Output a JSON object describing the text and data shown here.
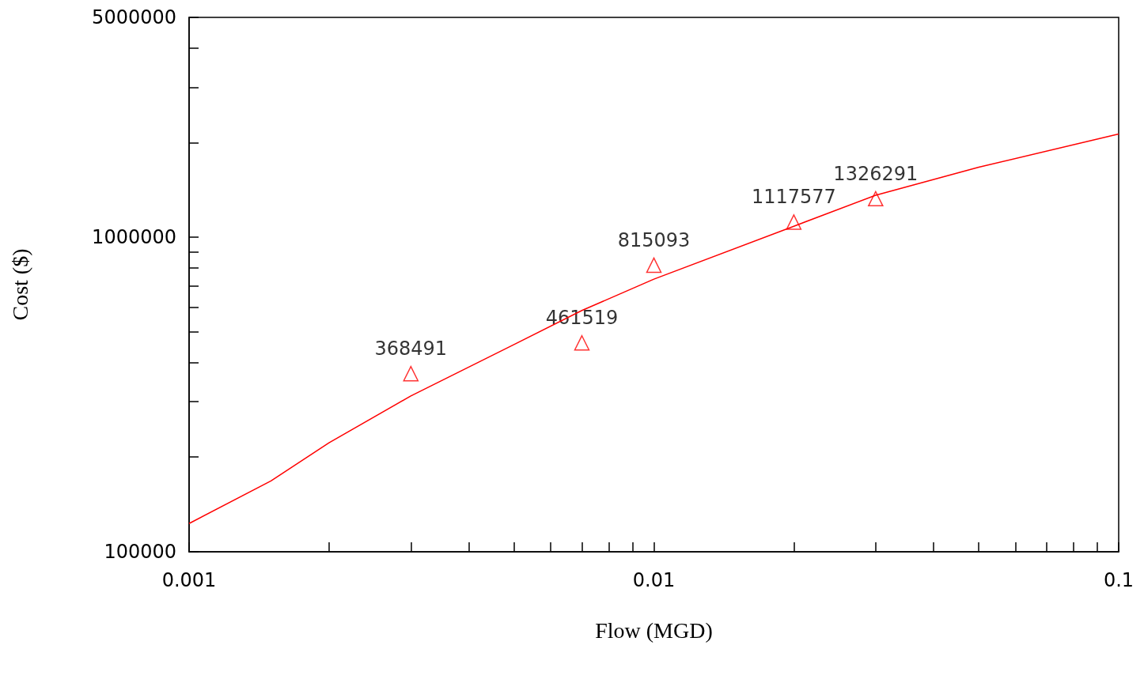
{
  "chart_data": {
    "type": "scatter",
    "xlabel": "Flow (MGD)",
    "ylabel": "Cost ($)",
    "log": "xy",
    "grid": false,
    "xlim": [
      0.001,
      0.1
    ],
    "ylim": [
      100000,
      5000000
    ],
    "xticks": [
      0.001,
      {
        "value": 0.002,
        "label": null
      },
      {
        "value": 0.003,
        "label": null
      },
      {
        "value": 0.004,
        "label": null
      },
      {
        "value": 0.005,
        "label": null
      },
      {
        "value": 0.006,
        "label": null
      },
      {
        "value": 0.007,
        "label": null
      },
      {
        "value": 0.008,
        "label": null
      },
      {
        "value": 0.009,
        "label": null
      },
      0.01,
      {
        "value": 0.02,
        "label": null
      },
      {
        "value": 0.03,
        "label": null
      },
      {
        "value": 0.04,
        "label": null
      },
      {
        "value": 0.05,
        "label": null
      },
      {
        "value": 0.06,
        "label": null
      },
      {
        "value": 0.07,
        "label": null
      },
      {
        "value": 0.08,
        "label": null
      },
      {
        "value": 0.09,
        "label": null
      },
      0.1
    ],
    "yticks": [
      100000,
      {
        "value": 200000,
        "label": null
      },
      {
        "value": 300000,
        "label": null
      },
      {
        "value": 400000,
        "label": null
      },
      {
        "value": 500000,
        "label": null
      },
      {
        "value": 600000,
        "label": null
      },
      {
        "value": 700000,
        "label": null
      },
      {
        "value": 800000,
        "label": null
      },
      {
        "value": 900000,
        "label": null
      },
      1000000,
      {
        "value": 2000000,
        "label": null
      },
      {
        "value": 3000000,
        "label": null
      },
      {
        "value": 4000000,
        "label": null
      },
      5000000
    ],
    "series": [
      {
        "color": "#ff0000",
        "marker": "triangle",
        "data_labels": true,
        "x": [
          0.003,
          0.007,
          0.01,
          0.02,
          0.03
        ],
        "values": [
          368491,
          461519,
          815093,
          1117577,
          1326291
        ]
      },
      {
        "type": "line",
        "color": "#ff0000",
        "marker": "none",
        "line_style": "solid",
        "x": [
          0.001,
          0.0015,
          0.002,
          0.003,
          0.005,
          0.007,
          0.01,
          0.02,
          0.03,
          0.05,
          0.1
        ],
        "values": [
          123000,
          168000,
          222000,
          313000,
          456000,
          585000,
          736000,
          1084000,
          1360000,
          1670000,
          2130000
        ]
      }
    ]
  }
}
